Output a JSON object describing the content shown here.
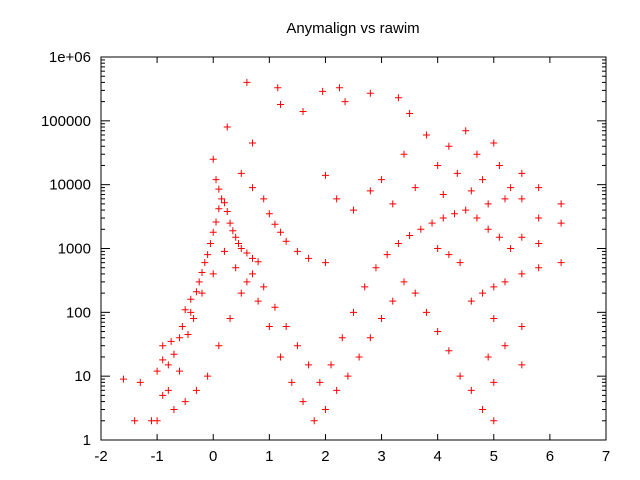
{
  "chart_data": {
    "type": "scatter",
    "title": "Anymalign vs rawim",
    "xlabel": "",
    "ylabel": "",
    "xlim": [
      -2,
      7
    ],
    "ylim": [
      1,
      1000000
    ],
    "y_scale": "log",
    "grid": false,
    "legend": "none",
    "x_ticks": [
      "-2",
      "-1",
      "0",
      "1",
      "2",
      "3",
      "4",
      "5",
      "6",
      "7"
    ],
    "y_ticks": [
      "1",
      "10",
      "100",
      "1000",
      "10000",
      "100000",
      "1e+06"
    ],
    "marker": "+",
    "color": "#ff0000",
    "series": [
      {
        "name": "",
        "points": [
          [
            -1.6,
            9
          ],
          [
            -1.4,
            2
          ],
          [
            -1.3,
            8
          ],
          [
            -1.1,
            2
          ],
          [
            -1.0,
            2
          ],
          [
            -1.0,
            12
          ],
          [
            -0.9,
            30
          ],
          [
            -0.9,
            18
          ],
          [
            -0.8,
            6
          ],
          [
            -0.75,
            35
          ],
          [
            -0.7,
            22
          ],
          [
            -0.6,
            12
          ],
          [
            -0.55,
            60
          ],
          [
            -0.5,
            110
          ],
          [
            -0.45,
            45
          ],
          [
            -0.4,
            160
          ],
          [
            -0.35,
            80
          ],
          [
            -0.3,
            210
          ],
          [
            -0.25,
            300
          ],
          [
            -0.2,
            420
          ],
          [
            -0.15,
            600
          ],
          [
            -0.1,
            800
          ],
          [
            -0.05,
            1200
          ],
          [
            0.0,
            1800
          ],
          [
            0.05,
            2600
          ],
          [
            0.1,
            4200
          ],
          [
            0.15,
            6000
          ],
          [
            0.1,
            8500
          ],
          [
            0.05,
            12000
          ],
          [
            0.0,
            25000
          ],
          [
            0.2,
            5200
          ],
          [
            0.25,
            3800
          ],
          [
            0.3,
            2500
          ],
          [
            0.35,
            1900
          ],
          [
            0.4,
            1500
          ],
          [
            0.45,
            1200
          ],
          [
            0.5,
            1000
          ],
          [
            0.6,
            850
          ],
          [
            0.7,
            700
          ],
          [
            0.8,
            620
          ],
          [
            0.5,
            15000
          ],
          [
            0.7,
            9000
          ],
          [
            0.9,
            6000
          ],
          [
            1.0,
            3500
          ],
          [
            1.1,
            2400
          ],
          [
            1.2,
            1800
          ],
          [
            1.3,
            1300
          ],
          [
            1.5,
            900
          ],
          [
            1.7,
            700
          ],
          [
            2.0,
            600
          ],
          [
            0.25,
            80000
          ],
          [
            0.6,
            400000
          ],
          [
            0.7,
            45000
          ],
          [
            1.15,
            330000
          ],
          [
            1.2,
            180000
          ],
          [
            1.6,
            140000
          ],
          [
            1.95,
            290000
          ],
          [
            2.25,
            330000
          ],
          [
            2.35,
            200000
          ],
          [
            2.8,
            270000
          ],
          [
            3.3,
            230000
          ],
          [
            3.5,
            130000
          ],
          [
            2.0,
            14000
          ],
          [
            2.2,
            6000
          ],
          [
            2.5,
            4000
          ],
          [
            2.8,
            8000
          ],
          [
            3.0,
            12000
          ],
          [
            3.2,
            5000
          ],
          [
            3.4,
            30000
          ],
          [
            3.6,
            9000
          ],
          [
            3.8,
            60000
          ],
          [
            4.0,
            20000
          ],
          [
            4.1,
            7000
          ],
          [
            4.2,
            40000
          ],
          [
            4.35,
            15000
          ],
          [
            4.5,
            70000
          ],
          [
            4.6,
            8000
          ],
          [
            4.7,
            30000
          ],
          [
            4.8,
            12000
          ],
          [
            4.9,
            5000
          ],
          [
            5.0,
            45000
          ],
          [
            5.1,
            20000
          ],
          [
            5.2,
            6000
          ],
          [
            5.3,
            9000
          ],
          [
            5.5,
            15000
          ],
          [
            5.5,
            6000
          ],
          [
            5.5,
            1500
          ],
          [
            5.8,
            9000
          ],
          [
            5.8,
            3000
          ],
          [
            5.8,
            1200
          ],
          [
            6.2,
            5000
          ],
          [
            6.2,
            2500
          ],
          [
            6.2,
            600
          ],
          [
            5.8,
            500
          ],
          [
            5.5,
            400
          ],
          [
            5.2,
            300
          ],
          [
            5.0,
            250
          ],
          [
            4.8,
            200
          ],
          [
            4.6,
            150
          ],
          [
            5.0,
            80
          ],
          [
            5.2,
            30
          ],
          [
            5.5,
            60
          ],
          [
            5.5,
            15
          ],
          [
            4.9,
            20
          ],
          [
            5.0,
            8
          ],
          [
            5.0,
            2
          ],
          [
            4.8,
            3
          ],
          [
            4.6,
            6
          ],
          [
            4.4,
            10
          ],
          [
            4.2,
            25
          ],
          [
            4.0,
            50
          ],
          [
            3.8,
            100
          ],
          [
            3.6,
            200
          ],
          [
            3.4,
            300
          ],
          [
            3.2,
            150
          ],
          [
            3.0,
            80
          ],
          [
            2.8,
            40
          ],
          [
            2.6,
            20
          ],
          [
            2.4,
            10
          ],
          [
            2.2,
            6
          ],
          [
            2.0,
            3
          ],
          [
            1.8,
            2
          ],
          [
            1.6,
            4
          ],
          [
            1.4,
            8
          ],
          [
            1.2,
            20
          ],
          [
            1.0,
            60
          ],
          [
            0.8,
            150
          ],
          [
            0.6,
            300
          ],
          [
            0.4,
            500
          ],
          [
            0.2,
            900
          ],
          [
            0.0,
            400
          ],
          [
            -0.2,
            200
          ],
          [
            -0.4,
            100
          ],
          [
            -0.6,
            40
          ],
          [
            -0.8,
            15
          ],
          [
            -0.9,
            5
          ],
          [
            -0.7,
            3
          ],
          [
            -0.5,
            4
          ],
          [
            -0.3,
            6
          ],
          [
            -0.1,
            10
          ],
          [
            0.1,
            30
          ],
          [
            0.3,
            80
          ],
          [
            0.5,
            200
          ],
          [
            0.7,
            400
          ],
          [
            0.9,
            250
          ],
          [
            1.1,
            120
          ],
          [
            1.3,
            60
          ],
          [
            1.5,
            30
          ],
          [
            1.7,
            15
          ],
          [
            1.9,
            8
          ],
          [
            2.1,
            15
          ],
          [
            2.3,
            40
          ],
          [
            2.5,
            100
          ],
          [
            2.7,
            250
          ],
          [
            2.9,
            500
          ],
          [
            3.1,
            800
          ],
          [
            3.3,
            1200
          ],
          [
            3.5,
            1600
          ],
          [
            3.7,
            2000
          ],
          [
            3.9,
            2500
          ],
          [
            4.1,
            3000
          ],
          [
            4.3,
            3500
          ],
          [
            4.5,
            4000
          ],
          [
            4.7,
            3000
          ],
          [
            4.9,
            2000
          ],
          [
            5.1,
            1500
          ],
          [
            5.3,
            1000
          ],
          [
            4.4,
            600
          ],
          [
            4.2,
            800
          ],
          [
            4.0,
            1000
          ]
        ]
      }
    ]
  }
}
